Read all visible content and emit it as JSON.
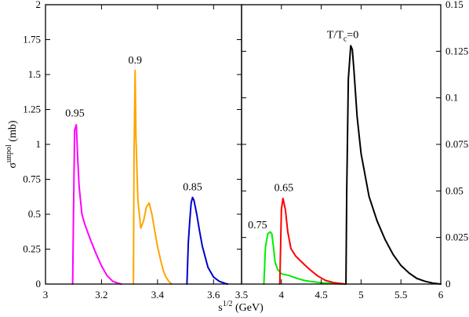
{
  "chart_data": [
    {
      "type": "line",
      "panel": "left",
      "xlabel": "s^{1/2} (GeV)",
      "ylabel": "σ^{unpol} (mb)",
      "xlim": [
        3,
        3.7
      ],
      "ylim": [
        0,
        2
      ],
      "x_ticks": [
        "3",
        "3.2",
        "3.4",
        "3.6"
      ],
      "y_ticks": [
        "0",
        "0.25",
        "0.5",
        "0.75",
        "1",
        "1.25",
        "1.5",
        "1.75",
        "2"
      ],
      "y_axis_side": "left",
      "series": [
        {
          "name": "0.95",
          "color": "#ff00ff",
          "label_at": [
            3.105,
            1.2
          ],
          "points": [
            [
              3.097,
              0
            ],
            [
              3.1,
              0.5
            ],
            [
              3.104,
              1.1
            ],
            [
              3.11,
              1.14
            ],
            [
              3.115,
              0.9
            ],
            [
              3.12,
              0.7
            ],
            [
              3.13,
              0.5
            ],
            [
              3.14,
              0.43
            ],
            [
              3.16,
              0.32
            ],
            [
              3.18,
              0.22
            ],
            [
              3.2,
              0.13
            ],
            [
              3.22,
              0.06
            ],
            [
              3.24,
              0.02
            ],
            [
              3.26,
              0.005
            ],
            [
              3.27,
              0
            ]
          ]
        },
        {
          "name": "0.9",
          "color": "#ffa500",
          "label_at": [
            3.32,
            1.58
          ],
          "points": [
            [
              3.314,
              0
            ],
            [
              3.316,
              0.9
            ],
            [
              3.32,
              1.53
            ],
            [
              3.323,
              1.05
            ],
            [
              3.33,
              0.6
            ],
            [
              3.34,
              0.4
            ],
            [
              3.35,
              0.45
            ],
            [
              3.36,
              0.55
            ],
            [
              3.37,
              0.58
            ],
            [
              3.38,
              0.5
            ],
            [
              3.39,
              0.38
            ],
            [
              3.4,
              0.27
            ],
            [
              3.41,
              0.18
            ],
            [
              3.42,
              0.1
            ],
            [
              3.43,
              0.05
            ],
            [
              3.44,
              0.02
            ],
            [
              3.45,
              0
            ]
          ]
        },
        {
          "name": "0.85",
          "color": "#0000cc",
          "label_at": [
            3.525,
            0.67
          ],
          "points": [
            [
              3.505,
              0
            ],
            [
              3.51,
              0.3
            ],
            [
              3.515,
              0.45
            ],
            [
              3.52,
              0.58
            ],
            [
              3.525,
              0.62
            ],
            [
              3.53,
              0.6
            ],
            [
              3.54,
              0.5
            ],
            [
              3.55,
              0.38
            ],
            [
              3.56,
              0.27
            ],
            [
              3.58,
              0.12
            ],
            [
              3.6,
              0.05
            ],
            [
              3.62,
              0.02
            ],
            [
              3.64,
              0.005
            ],
            [
              3.65,
              0
            ]
          ]
        }
      ]
    },
    {
      "type": "line",
      "panel": "right",
      "xlabel": "s^{1/2} (GeV)",
      "ylabel": "",
      "xlim": [
        3.5,
        6
      ],
      "ylim": [
        0,
        0.15
      ],
      "x_ticks": [
        "3.5",
        "4",
        "4.5",
        "5",
        "5.5",
        "6"
      ],
      "y_ticks": [
        "0",
        "0.025",
        "0.05",
        "0.075",
        "0.1",
        "0.125",
        "0.15"
      ],
      "y_axis_side": "right",
      "series": [
        {
          "name": "0.75",
          "color": "#00ee00",
          "label_at": [
            3.7,
            0.03
          ],
          "points": [
            [
              3.78,
              0
            ],
            [
              3.8,
              0.02
            ],
            [
              3.83,
              0.027
            ],
            [
              3.86,
              0.028
            ],
            [
              3.88,
              0.027
            ],
            [
              3.9,
              0.02
            ],
            [
              3.92,
              0.012
            ],
            [
              3.95,
              0.008
            ],
            [
              4,
              0.0055
            ],
            [
              4.1,
              0.0045
            ],
            [
              4.2,
              0.003
            ],
            [
              4.3,
              0.0018
            ],
            [
              4.5,
              0.0007
            ],
            [
              4.7,
              0.0001
            ],
            [
              4.8,
              0
            ]
          ]
        },
        {
          "name": "0.65",
          "color": "#ff0000",
          "label_at": [
            4.03,
            0.05
          ],
          "points": [
            [
              3.98,
              0
            ],
            [
              3.99,
              0.02
            ],
            [
              4.0,
              0.04
            ],
            [
              4.02,
              0.046
            ],
            [
              4.05,
              0.04
            ],
            [
              4.08,
              0.028
            ],
            [
              4.12,
              0.019
            ],
            [
              4.18,
              0.015
            ],
            [
              4.25,
              0.012
            ],
            [
              4.35,
              0.008
            ],
            [
              4.45,
              0.0045
            ],
            [
              4.55,
              0.002
            ],
            [
              4.65,
              0.0008
            ],
            [
              4.8,
              0
            ]
          ]
        },
        {
          "name": "T/T_c=0",
          "color": "#000000",
          "label_at": [
            4.77,
            0.132
          ],
          "points": [
            [
              4.81,
              0
            ],
            [
              4.82,
              0.05
            ],
            [
              4.84,
              0.11
            ],
            [
              4.87,
              0.128
            ],
            [
              4.89,
              0.126
            ],
            [
              4.91,
              0.115
            ],
            [
              4.95,
              0.09
            ],
            [
              5.0,
              0.07
            ],
            [
              5.1,
              0.047
            ],
            [
              5.2,
              0.034
            ],
            [
              5.3,
              0.024
            ],
            [
              5.4,
              0.016
            ],
            [
              5.5,
              0.01
            ],
            [
              5.6,
              0.006
            ],
            [
              5.7,
              0.003
            ],
            [
              5.8,
              0.0015
            ],
            [
              5.9,
              0.0005
            ],
            [
              6.0,
              0
            ]
          ]
        }
      ]
    }
  ],
  "labels": {
    "ylabel_main": "σ",
    "ylabel_sup": "unpol",
    "ylabel_unit": " (mb)",
    "xlabel_main": "s",
    "xlabel_sup": "1/2",
    "xlabel_unit": " (GeV)",
    "tc_main": "T/T",
    "tc_sub": "c",
    "tc_rest": "=0"
  }
}
